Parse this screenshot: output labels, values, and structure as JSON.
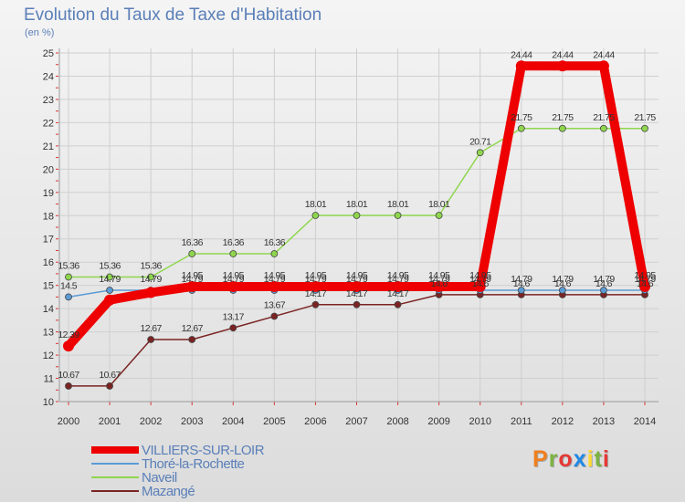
{
  "title": "Evolution du Taux de Taxe d'Habitation",
  "unit": "(en %)",
  "logo_text": "Proxiti",
  "colors": {
    "logo": [
      "#f07f1e",
      "#7cb342",
      "#e53935",
      "#1e88e5",
      "#fdd835",
      "#7cb342",
      "#e53935"
    ]
  },
  "chart_data": {
    "type": "line",
    "title": "Evolution du Taux de Taxe d'Habitation",
    "ylabel": "(en %)",
    "xlabel": "",
    "x": [
      "2000",
      "2001",
      "2002",
      "2003",
      "2004",
      "2005",
      "2006",
      "2007",
      "2008",
      "2009",
      "2010",
      "2011",
      "2012",
      "2013",
      "2014"
    ],
    "ylim": [
      10,
      25
    ],
    "yticks": [
      10,
      11,
      12,
      13,
      14,
      15,
      16,
      17,
      18,
      19,
      20,
      21,
      22,
      23,
      24,
      25
    ],
    "grid": true,
    "legend": "bottom-left",
    "series": [
      {
        "name": "VILLIERS-SUR-LOIR",
        "color": "#ee0000",
        "values": [
          12.39,
          14.37,
          14.69,
          14.95,
          14.95,
          14.95,
          14.95,
          14.95,
          14.95,
          14.95,
          14.95,
          24.44,
          24.44,
          24.44,
          14.95
        ],
        "labels": [
          "12.39",
          "",
          "",
          "14.95",
          "14.95",
          "14.95",
          "14.95",
          "14.95",
          "14.95",
          "14.95",
          "14.95",
          "24.44",
          "24.44",
          "24.44",
          "14.95"
        ]
      },
      {
        "name": "Thoré-la-Rochette",
        "color": "#5b9bd5",
        "values": [
          14.5,
          14.79,
          14.79,
          14.79,
          14.79,
          14.79,
          14.79,
          14.79,
          14.79,
          14.79,
          14.79,
          14.79,
          14.79,
          14.79,
          14.79
        ],
        "labels": [
          "14.5",
          "14.79",
          "14.79",
          "14.79",
          "14.79",
          "14.79",
          "14.79",
          "14.79",
          "14.79",
          "14.79",
          "14.79",
          "14.79",
          "14.79",
          "14.79",
          "14.79"
        ]
      },
      {
        "name": "Naveil",
        "color": "#8fd64e",
        "values": [
          15.36,
          15.36,
          15.36,
          16.36,
          16.36,
          16.36,
          18.01,
          18.01,
          18.01,
          18.01,
          20.71,
          21.75,
          21.75,
          21.75,
          21.75
        ],
        "labels": [
          "15.36",
          "15.36",
          "15.36",
          "16.36",
          "16.36",
          "16.36",
          "18.01",
          "18.01",
          "18.01",
          "18.01",
          "20.71",
          "21.75",
          "21.75",
          "21.75",
          "21.75"
        ]
      },
      {
        "name": "Mazangé",
        "color": "#7b2323",
        "values": [
          10.67,
          10.67,
          12.67,
          12.67,
          13.17,
          13.67,
          14.17,
          14.17,
          14.17,
          14.6,
          14.6,
          14.6,
          14.6,
          14.6,
          14.6
        ],
        "labels": [
          "10.67",
          "10.67",
          "12.67",
          "12.67",
          "13.17",
          "13.67",
          "14.17",
          "14.17",
          "14.17",
          "14.6",
          "14.6",
          "14.6",
          "14.6",
          "14.6",
          "14.6"
        ]
      }
    ]
  }
}
